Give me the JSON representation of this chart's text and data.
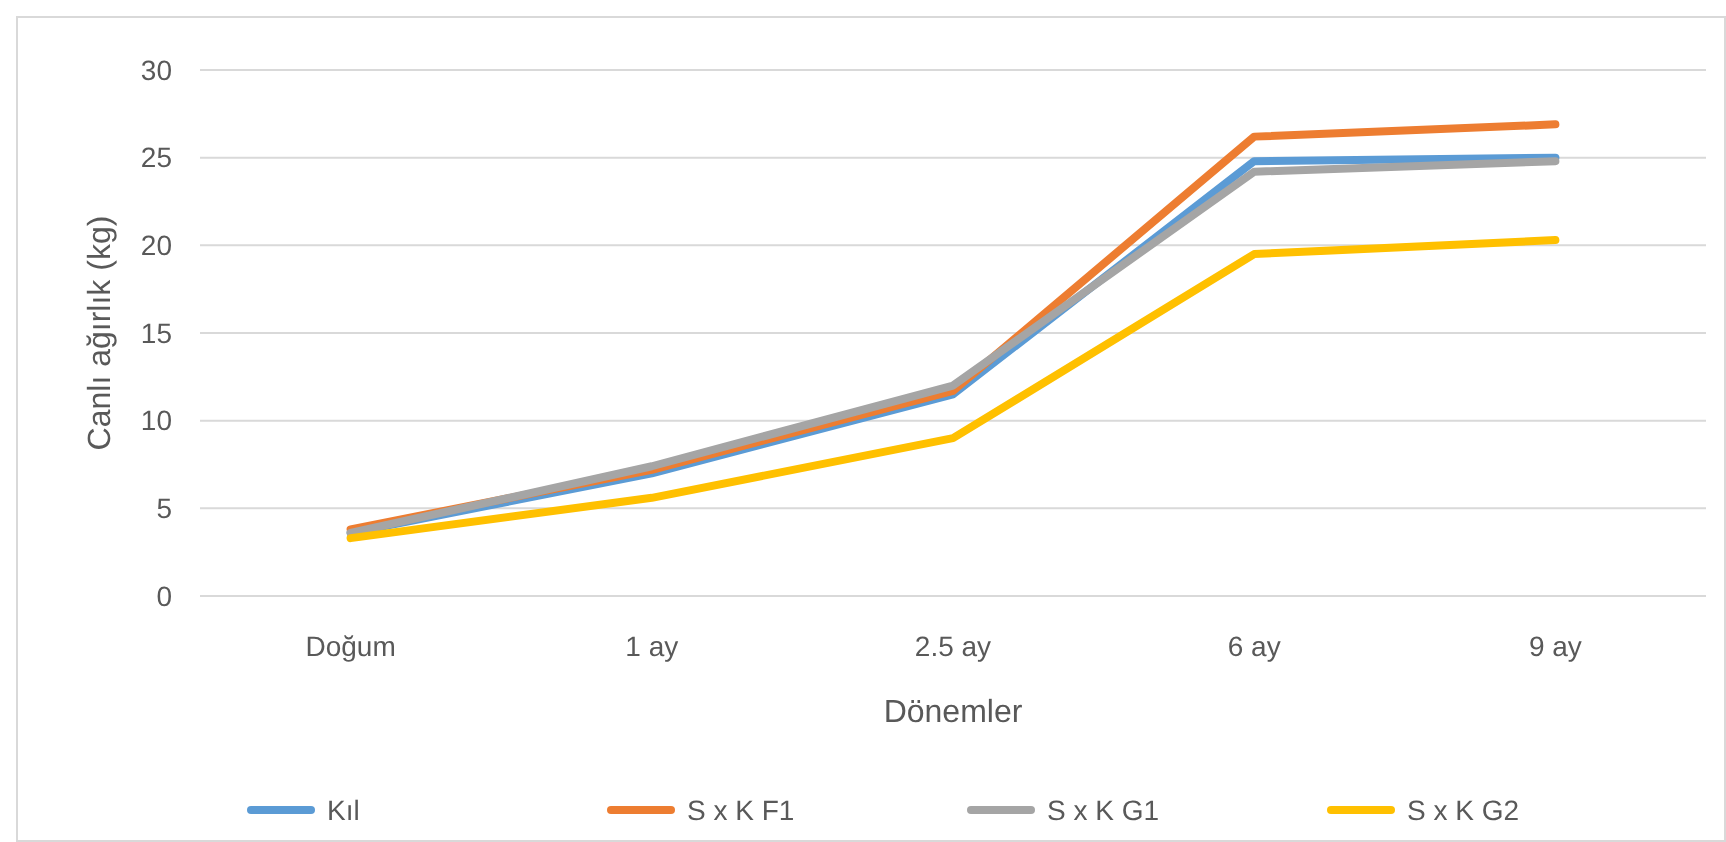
{
  "chart_data": {
    "type": "line",
    "xlabel": "Dönemler",
    "ylabel": "Canlı ağırlık (kg)",
    "categories": [
      "Doğum",
      "1 ay",
      "2.5 ay",
      "6 ay",
      "9 ay"
    ],
    "series": [
      {
        "name": "Kıl",
        "color": "#5b9bd5",
        "values": [
          3.6,
          7.0,
          11.5,
          24.8,
          25.0
        ]
      },
      {
        "name": "S x K F1",
        "color": "#ed7d31",
        "values": [
          3.8,
          7.2,
          11.7,
          26.2,
          26.9
        ]
      },
      {
        "name": "S x K G1",
        "color": "#a5a5a5",
        "values": [
          3.6,
          7.4,
          12.0,
          24.2,
          24.8
        ]
      },
      {
        "name": "S x K G2",
        "color": "#ffc000",
        "values": [
          3.3,
          5.6,
          9.0,
          19.5,
          20.3
        ]
      }
    ],
    "ylim": [
      0,
      30
    ],
    "yticks": [
      0,
      5,
      10,
      15,
      20,
      25,
      30
    ],
    "grid": "y",
    "legend": "bottom",
    "marker": "none",
    "line_style": "solid"
  }
}
